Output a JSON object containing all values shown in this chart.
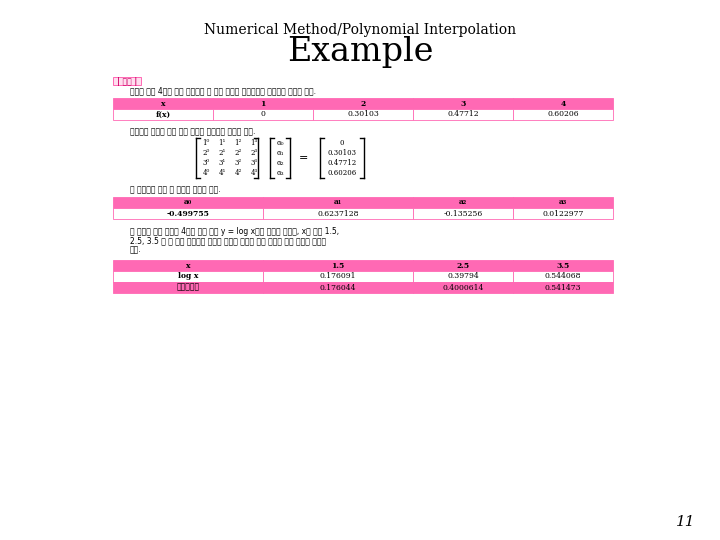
{
  "title_top": "Numerical Method/Polynomial Interpolation",
  "title_main": "Example",
  "section_label": "| 예제 |",
  "intro_text": "다음과 같이 4개의 수이 주어졌을 때 친대 함수를 다항함수를 이용하여 추정해 보자.",
  "table1_headers": [
    "x",
    "1",
    "2",
    "3",
    "4"
  ],
  "table1_row": [
    "f(x)",
    "0",
    "0.30103",
    "0.47712",
    "0.60206"
  ],
  "matrix_text": "다항함수 추정을 위한 치음 행렬로 표현하면 다음과 같다.",
  "solve_text": "이 행렬식을 풍면 그 결과는 다음과 같다.",
  "table2_headers": [
    "a₀",
    "a₁",
    "a₂",
    "a₃"
  ],
  "table2_row": [
    "-0.499755",
    "0.6237128",
    "-0.135256",
    "0.0122977"
  ],
  "result_text1": "위 예제에 원래 주어진 4개의 값은 함수 y = log x에서 얻어진 값이며, x가 각각 1.5,",
  "result_text2": "2.5, 3.5 일 때 실제 해수값과 추정된 함수를 이용한 값은 다음과 같은 수준의 차이가",
  "result_text3": "있다.",
  "table3_headers": [
    "x",
    "1.5",
    "2.5",
    "3.5"
  ],
  "table3_row1_label": "log x",
  "table3_row1": [
    "0.176091",
    "0.39794",
    "0.544068"
  ],
  "table3_row2_label": "다항함수값",
  "table3_row2": [
    "0.176044",
    "0.4000614",
    "0.541473"
  ],
  "page_num": "11",
  "bg_color": "#ffffff",
  "pink": "#ff69b4",
  "border_color": "#ff69b4",
  "white": "#ffffff"
}
